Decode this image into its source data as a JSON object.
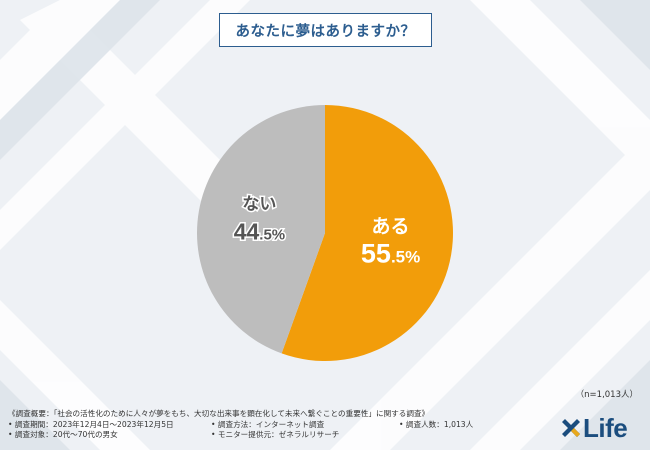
{
  "colors": {
    "slice_yes": "#f29d0a",
    "slice_no": "#bdbdbd",
    "title": "#2c5d8f",
    "logo": "#1b4d7e"
  },
  "title": "あなたに夢はありますか？",
  "chart_data": {
    "type": "pie",
    "title": "あなたに夢はありますか？",
    "slices": [
      {
        "label": "ある",
        "value": 55.5,
        "display_big": "55",
        "display_small": ".5%",
        "color": "#f29d0a"
      },
      {
        "label": "ない",
        "value": 44.5,
        "display_big": "44",
        "display_small": ".5%",
        "color": "#bdbdbd"
      }
    ],
    "start": "12 o'clock",
    "direction": "clockwise",
    "legend": "none"
  },
  "sample_size": "（n=1,013人）",
  "notes": {
    "overview": "《調査概要：「社会の活性化のために人々が夢をもち、大切な出来事を顕在化して未来へ繋ぐことの重要性」に関する調査》",
    "period": "• 調査期間：2023年12月4日〜2023年12月5日",
    "method": "• 調査方法：インターネット調査",
    "count": "• 調査人数：1,013人",
    "target": "• 調査対象：20代〜70代の男女",
    "provider": "• モニター提供元：ゼネラルリサーチ"
  },
  "logo": {
    "text": "Life",
    "icon": "x-cross-logo-icon"
  }
}
